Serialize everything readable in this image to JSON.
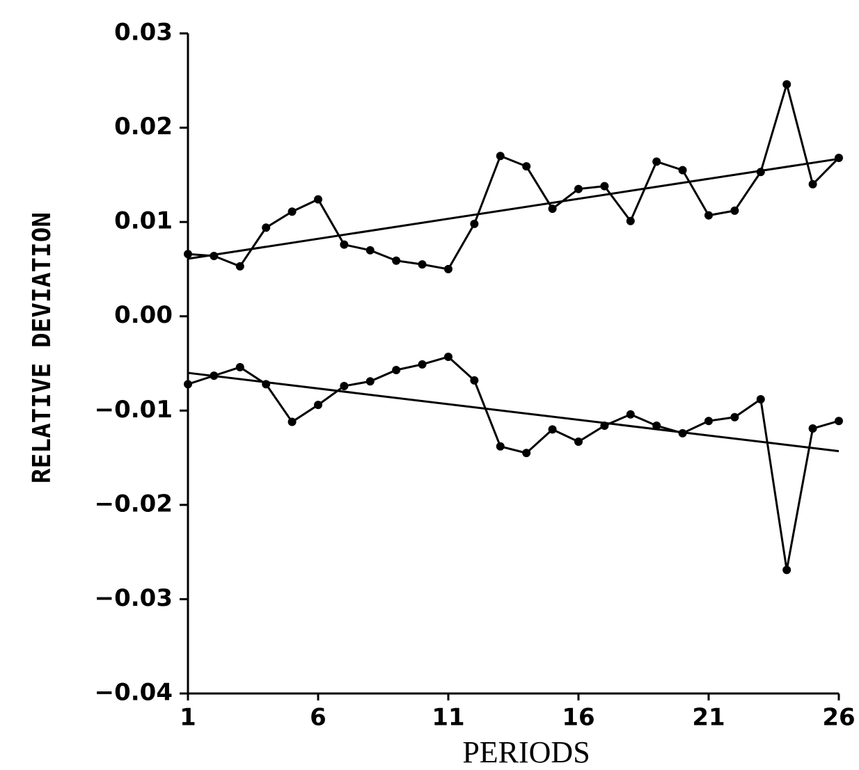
{
  "chart_data": {
    "type": "line",
    "xlabel": "PERIODS",
    "ylabel": "RELATIVE DEVIATION",
    "xlim": [
      1,
      26
    ],
    "xticks": [
      1,
      6,
      11,
      16,
      21,
      26
    ],
    "ylim": [
      -0.04,
      0.03
    ],
    "yticks": [
      {
        "value": -0.04,
        "label": "−0.04"
      },
      {
        "value": -0.03,
        "label": "−0.03"
      },
      {
        "value": -0.02,
        "label": "−0.02"
      },
      {
        "value": -0.01,
        "label": "−0.01"
      },
      {
        "value": 0,
        "label": "0.00"
      },
      0.01,
      0.02,
      0.03
    ],
    "series": [
      {
        "color": "#000000",
        "marker": true,
        "x": [
          1,
          2,
          3,
          4,
          5,
          6,
          7,
          8,
          9,
          10,
          11,
          12,
          13,
          14,
          15,
          16,
          17,
          18,
          19,
          20,
          21,
          22,
          23,
          24,
          25,
          26
        ],
        "values": [
          0.0066,
          0.0064,
          0.0053,
          0.0094,
          0.0111,
          0.0124,
          0.0076,
          0.007,
          0.0059,
          0.0055,
          0.005,
          0.0098,
          0.017,
          0.0159,
          0.0114,
          0.0135,
          0.0138,
          0.0101,
          0.0164,
          0.0155,
          0.0107,
          0.0112,
          0.0153,
          0.0246,
          0.014,
          0.0168
        ]
      },
      {
        "color": "#000000",
        "marker": false,
        "x": [
          1,
          26
        ],
        "values": [
          0.0061,
          0.0167
        ]
      },
      {
        "color": "#000000",
        "marker": true,
        "x": [
          1,
          2,
          3,
          4,
          5,
          6,
          7,
          8,
          9,
          10,
          11,
          12,
          13,
          14,
          15,
          16,
          17,
          18,
          19,
          20,
          21,
          22,
          23,
          24,
          25,
          26
        ],
        "values": [
          -0.0072,
          -0.0063,
          -0.0054,
          -0.0072,
          -0.0112,
          -0.0094,
          -0.0074,
          -0.0069,
          -0.0057,
          -0.0051,
          -0.0043,
          -0.0068,
          -0.0138,
          -0.0145,
          -0.012,
          -0.0133,
          -0.0116,
          -0.0104,
          -0.0116,
          -0.0124,
          -0.0111,
          -0.0107,
          -0.0088,
          -0.0269,
          -0.0119,
          -0.0111
        ]
      },
      {
        "color": "#000000",
        "marker": false,
        "x": [
          1,
          26
        ],
        "values": [
          -0.006,
          -0.0143
        ]
      }
    ]
  }
}
